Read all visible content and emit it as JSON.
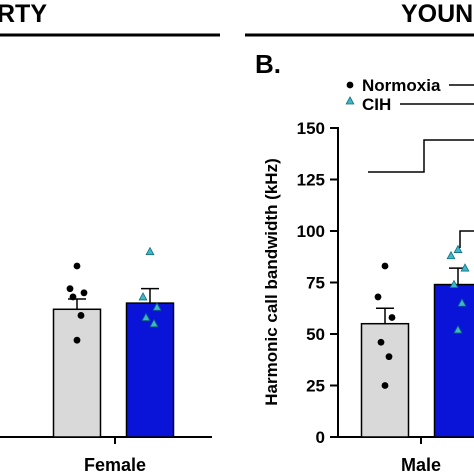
{
  "headers": {
    "left": "RTY",
    "right": "YOUN"
  },
  "chart_data": [
    {
      "panel": "",
      "type": "bar",
      "categories": [
        "Female"
      ],
      "ylim": [
        0,
        150
      ],
      "series": [
        {
          "name": "Normoxia",
          "color": "#d9d9d9",
          "values": [
            62
          ],
          "sem": [
            5
          ],
          "points": [
            [
              83,
              72,
              70,
              68,
              59,
              47
            ]
          ]
        },
        {
          "name": "CIH",
          "color": "#0a14d9",
          "values": [
            65
          ],
          "sem": [
            7
          ],
          "points": [
            [
              90,
              68,
              63,
              58,
              55
            ]
          ]
        }
      ]
    },
    {
      "panel": "B.",
      "type": "bar",
      "categories": [
        "Male"
      ],
      "ylabel": "Harmonic call bandwidth (kHz)",
      "yticks": [
        0,
        25,
        50,
        75,
        100,
        125,
        150
      ],
      "ylim": [
        0,
        150
      ],
      "legend_position": "top",
      "series": [
        {
          "name": "Normoxia",
          "color": "#d9d9d9",
          "values": [
            55
          ],
          "sem": [
            7.5
          ],
          "points": [
            [
              83,
              68,
              58,
              46,
              39,
              25
            ]
          ]
        },
        {
          "name": "CIH",
          "color": "#0a14d9",
          "values": [
            74
          ],
          "sem": [
            8
          ],
          "points": [
            [
              91,
              88,
              82,
              74,
              65,
              52
            ]
          ]
        }
      ]
    }
  ]
}
